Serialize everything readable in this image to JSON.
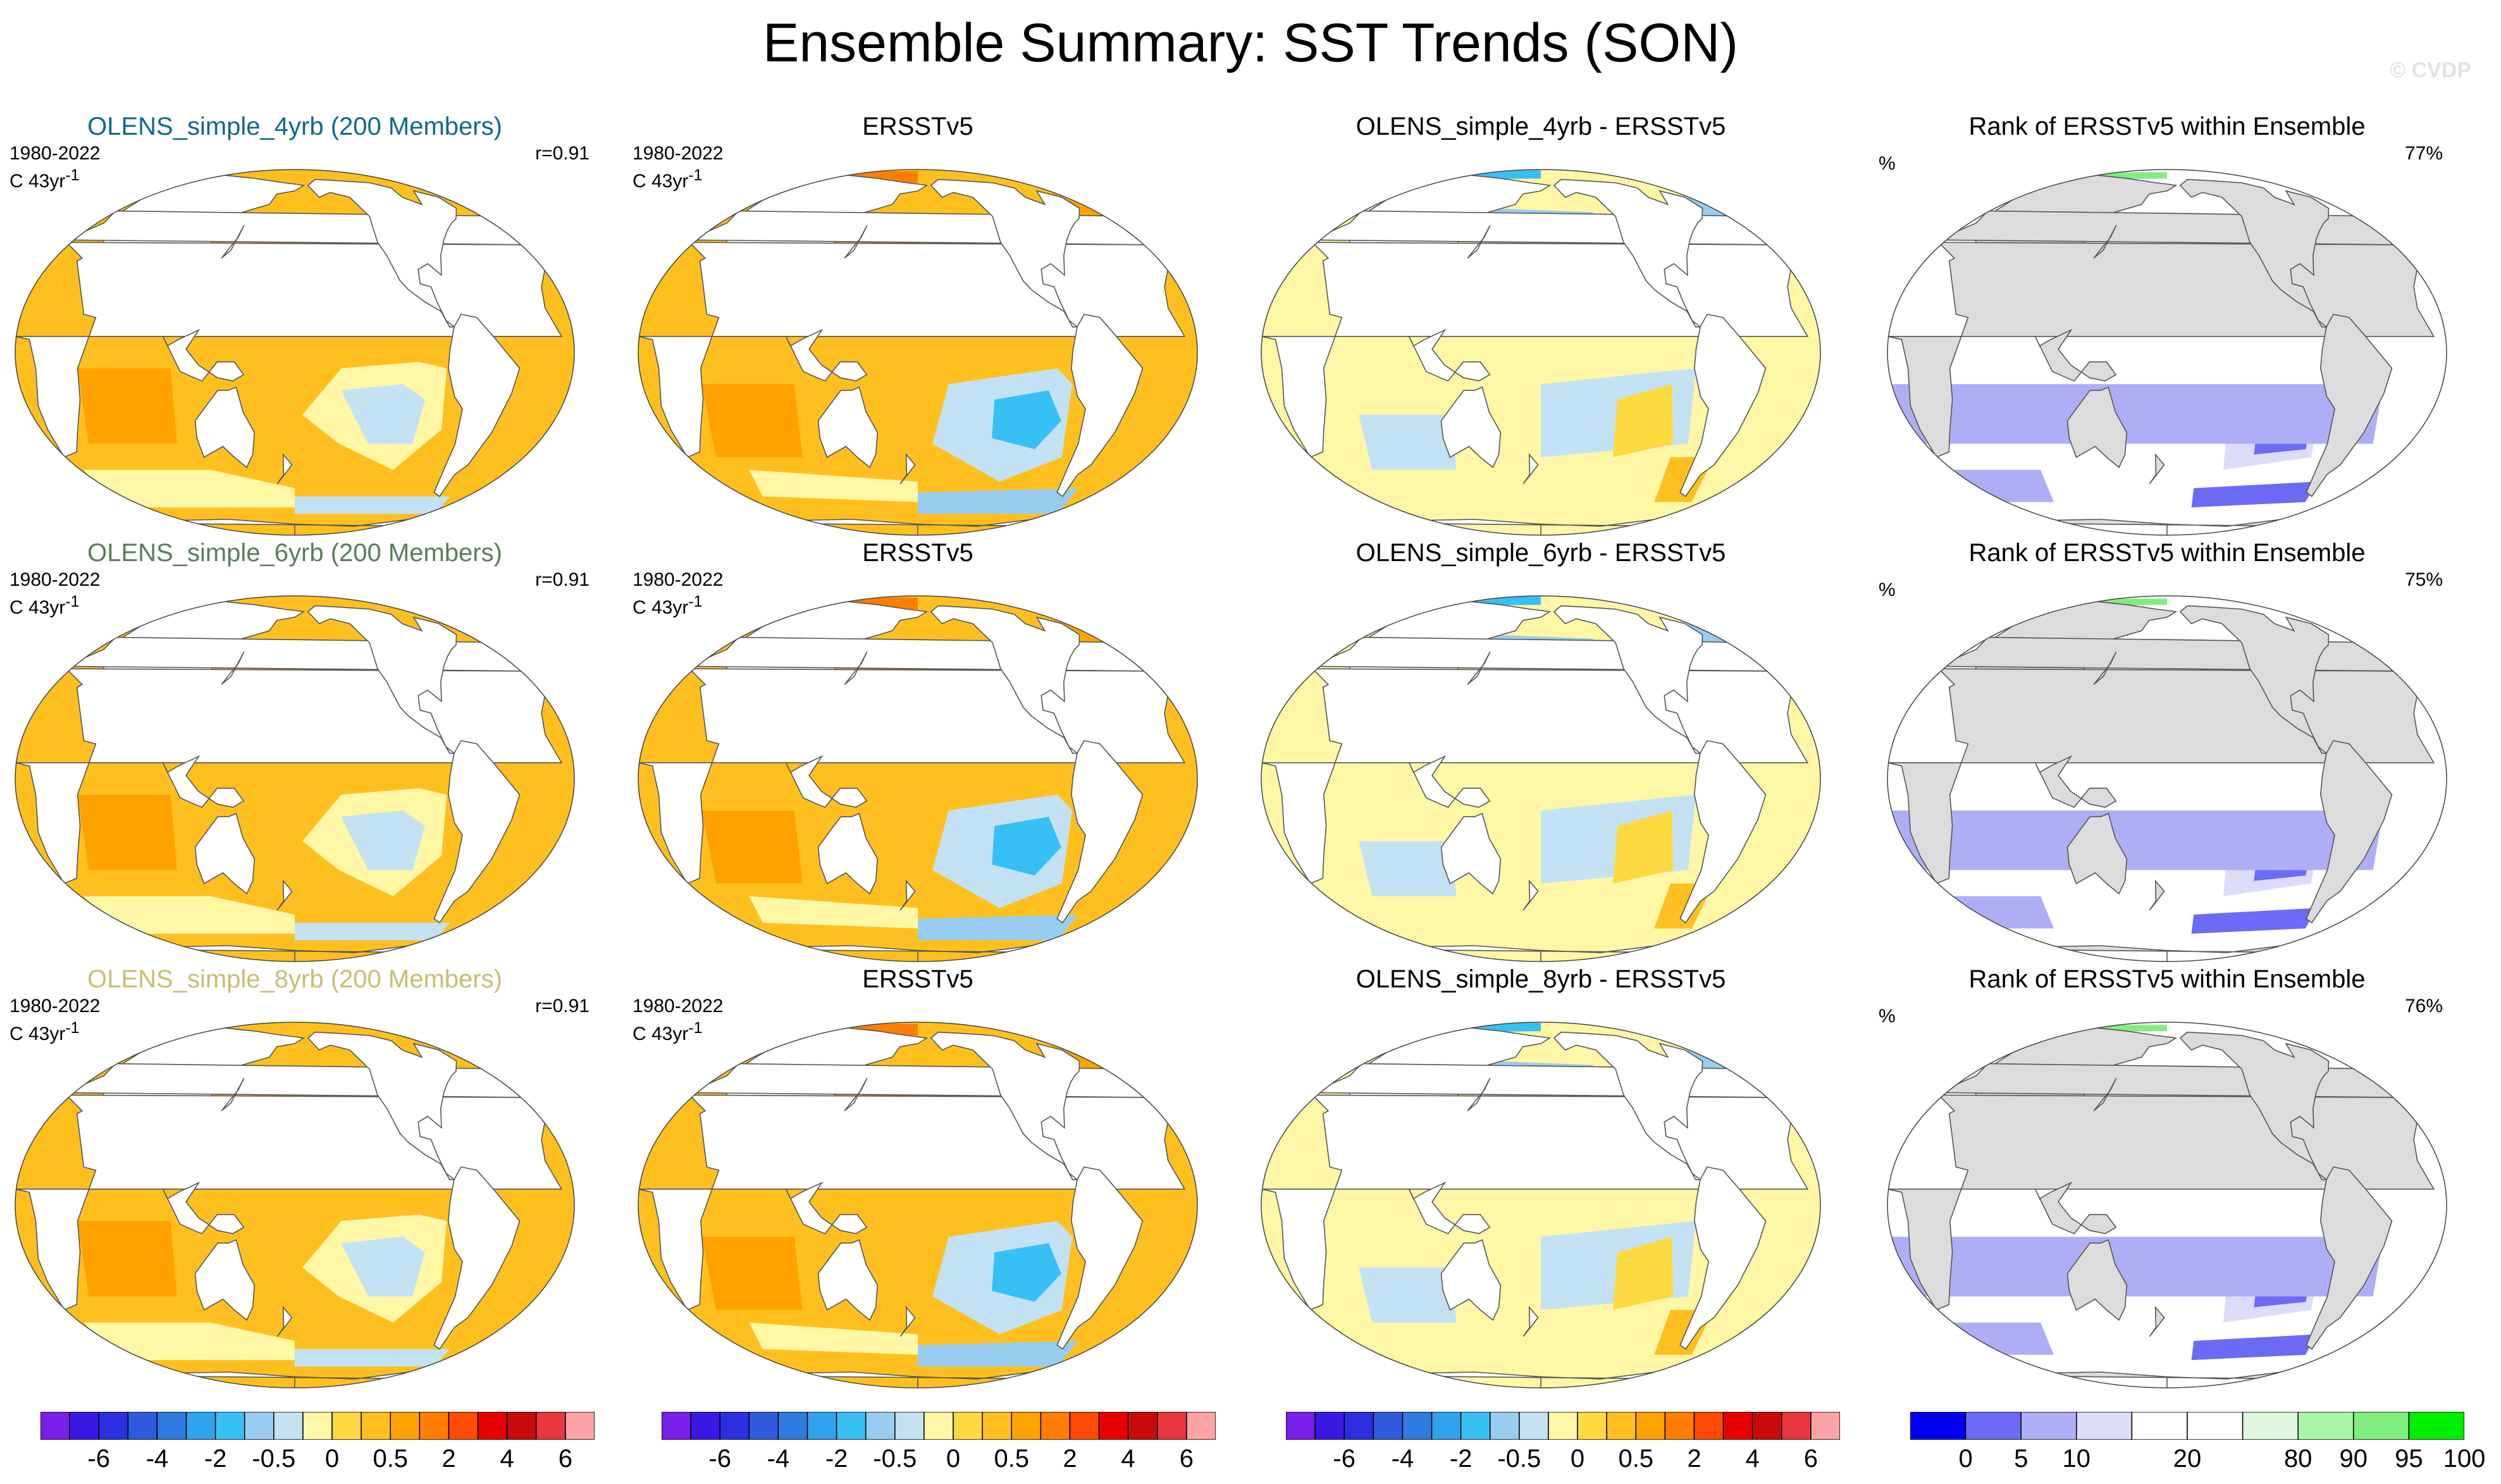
{
  "title": "Ensemble Summary: SST Trends (SON)",
  "copyright": "© CVDP",
  "rows": [
    {
      "ens_title": "OLENS_simple_4yrb (200 Members)",
      "ens_color": "#0e6a8a",
      "period": "1980-2022",
      "units": "C 43yr",
      "units_sup": "-1",
      "corr": "r=0.91",
      "obs_title": "ERSSTv5",
      "diff_title": "OLENS_simple_4yrb - ERSSTv5",
      "rank_title": "Rank of ERSSTv5 within Ensemble",
      "rank_unit": "%",
      "rank_pct": "77%"
    },
    {
      "ens_title": "OLENS_simple_6yrb (200 Members)",
      "ens_color": "#5a7d5a",
      "period": "1980-2022",
      "units": "C 43yr",
      "units_sup": "-1",
      "corr": "r=0.91",
      "obs_title": "ERSSTv5",
      "diff_title": "OLENS_simple_6yrb - ERSSTv5",
      "rank_title": "Rank of ERSSTv5 within Ensemble",
      "rank_unit": "%",
      "rank_pct": "75%"
    },
    {
      "ens_title": "OLENS_simple_8yrb (200 Members)",
      "ens_color": "#c9bd72",
      "period": "1980-2022",
      "units": "C 43yr",
      "units_sup": "-1",
      "corr": "r=0.91",
      "obs_title": "ERSSTv5",
      "diff_title": "OLENS_simple_8yrb - ERSSTv5",
      "rank_title": "Rank of ERSSTv5 within Ensemble",
      "rank_unit": "%",
      "rank_pct": "76%"
    }
  ],
  "trend_colorbar": {
    "colors": [
      "#7a1fe8",
      "#3a18e6",
      "#2b2fe0",
      "#2f5bdc",
      "#2f7ce0",
      "#2fa3ee",
      "#37c0f6",
      "#98cdf0",
      "#c2e2f4",
      "#fff6a6",
      "#ffd940",
      "#ffc01f",
      "#ffa200",
      "#ff7d00",
      "#ff4b00",
      "#e80000",
      "#c80a0a",
      "#e8373c",
      "#fca3a6"
    ],
    "labels": [
      "-6",
      "-4",
      "-2",
      "-0.5",
      "0",
      "0.5",
      "2",
      "4",
      "6"
    ]
  },
  "rank_colorbar": {
    "colors": [
      "#0000f4",
      "#6b6bf5",
      "#aeaef7",
      "#dcdcfa",
      "#ffffff",
      "#ffffff",
      "#ddf8dd",
      "#aaf4aa",
      "#7fee7f",
      "#00ee00"
    ],
    "labels": [
      "0",
      "5",
      "10",
      "20",
      "80",
      "90",
      "95",
      "100"
    ]
  }
}
